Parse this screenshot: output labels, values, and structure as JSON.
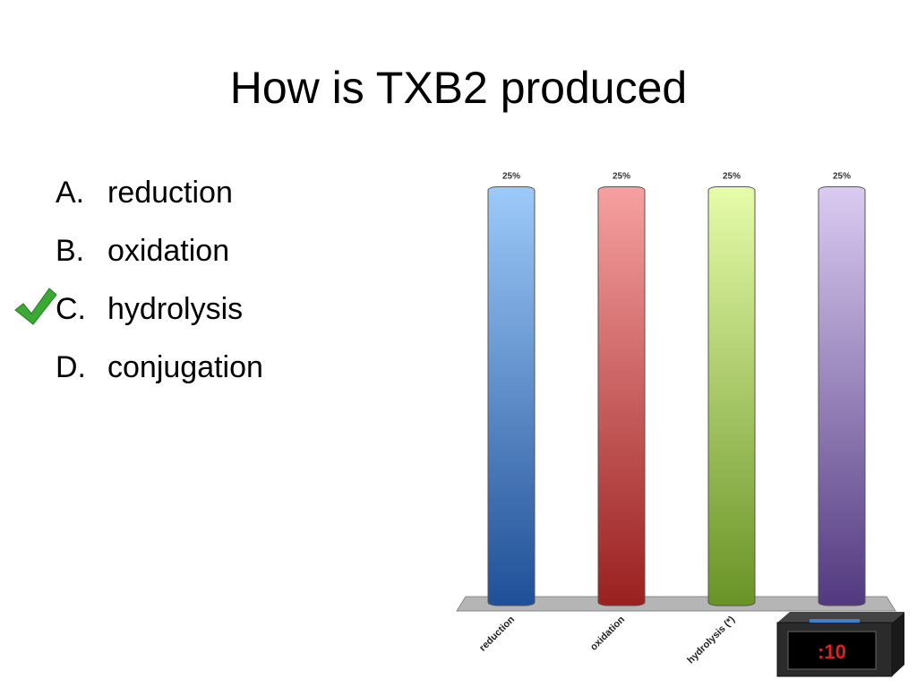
{
  "title": "How is TXB2 produced",
  "options": [
    {
      "letter": "A.",
      "text": "reduction"
    },
    {
      "letter": "B.",
      "text": "oxidation"
    },
    {
      "letter": "C.",
      "text": "hydrolysis"
    },
    {
      "letter": "D.",
      "text": "conjugation"
    }
  ],
  "timer": ":10",
  "chart_data": {
    "type": "bar",
    "categories": [
      "reduction",
      "oxidation",
      "hydrolysis (*)",
      null
    ],
    "values": [
      25,
      25,
      25,
      25
    ],
    "value_labels": [
      "25%",
      "25%",
      "25%",
      "25%"
    ],
    "colors": [
      [
        "#9dcaf9",
        "#1f4f97"
      ],
      [
        "#f7a0a0",
        "#99201f"
      ],
      [
        "#e6fca9",
        "#699326"
      ],
      [
        "#dacbf2",
        "#52397f"
      ]
    ]
  }
}
